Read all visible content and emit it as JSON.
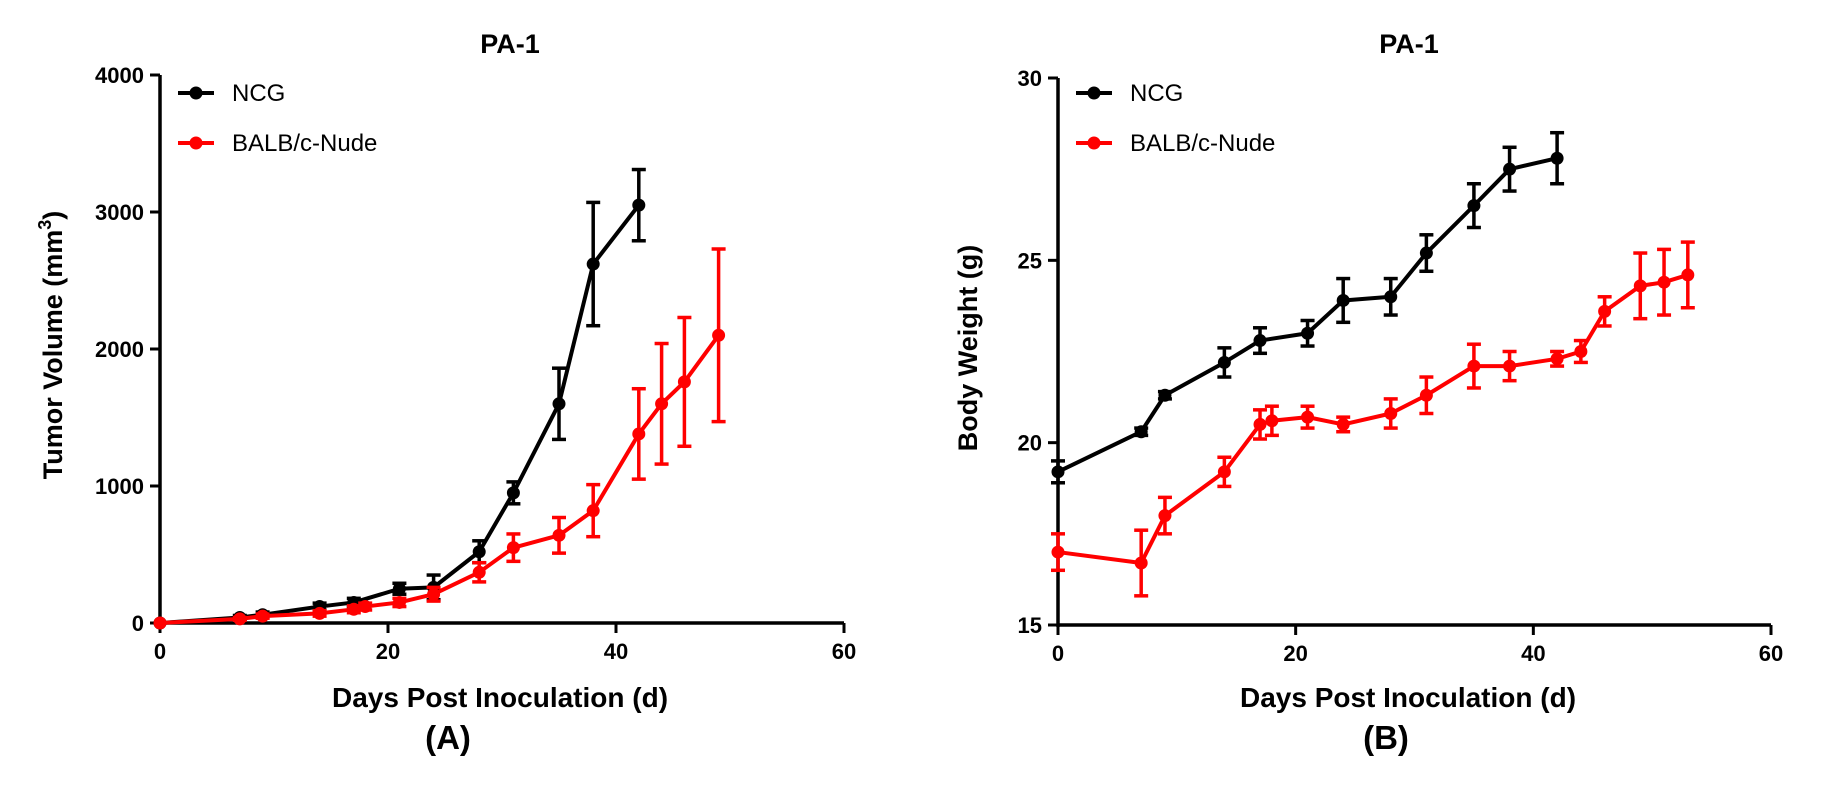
{
  "chart_data": [
    {
      "type": "line",
      "panel_label": "(A)",
      "title": "PA-1",
      "xlabel": "Days Post Inoculation (d)",
      "ylabel": "Tumor Volume (mm",
      "ylabel_sup": "3",
      "ylabel_close": ")",
      "xlim": [
        0,
        60
      ],
      "ylim": [
        0,
        4000
      ],
      "xticks": [
        0,
        20,
        40,
        60
      ],
      "yticks": [
        0,
        1000,
        2000,
        3000,
        4000
      ],
      "grid": false,
      "legend_position": "top-left",
      "series": [
        {
          "name": "NCG",
          "color": "#000000",
          "x": [
            0,
            7,
            9,
            14,
            17,
            21,
            24,
            28,
            31,
            35,
            38,
            42
          ],
          "y": [
            0,
            40,
            60,
            120,
            150,
            250,
            260,
            520,
            950,
            1600,
            2620,
            3050
          ],
          "err": [
            0,
            15,
            20,
            25,
            30,
            40,
            90,
            80,
            80,
            260,
            450,
            260
          ]
        },
        {
          "name": "BALB/c-Nude",
          "color": "#ff0000",
          "x": [
            0,
            7,
            9,
            14,
            17,
            18,
            21,
            24,
            28,
            31,
            35,
            38,
            42,
            44,
            46,
            49
          ],
          "y": [
            0,
            30,
            50,
            70,
            100,
            120,
            150,
            210,
            370,
            550,
            640,
            820,
            1380,
            1600,
            1760,
            2100
          ],
          "err": [
            0,
            10,
            15,
            20,
            25,
            25,
            30,
            50,
            70,
            100,
            130,
            190,
            330,
            440,
            470,
            630
          ]
        }
      ]
    },
    {
      "type": "line",
      "panel_label": "(B)",
      "title": "PA-1",
      "xlabel": "Days Post Inoculation (d)",
      "ylabel": "Body Weight (g)",
      "xlim": [
        0,
        60
      ],
      "ylim": [
        15,
        30
      ],
      "xticks": [
        0,
        20,
        40,
        60
      ],
      "yticks": [
        15,
        20,
        25,
        30
      ],
      "grid": false,
      "legend_position": "top-left",
      "series": [
        {
          "name": "NCG",
          "color": "#000000",
          "x": [
            0,
            7,
            9,
            14,
            17,
            21,
            24,
            28,
            31,
            35,
            38,
            42
          ],
          "y": [
            19.2,
            20.3,
            21.3,
            22.2,
            22.8,
            23.0,
            23.9,
            24.0,
            25.2,
            26.5,
            27.5,
            27.8
          ],
          "err": [
            0.3,
            0.1,
            0.1,
            0.4,
            0.35,
            0.35,
            0.6,
            0.5,
            0.5,
            0.6,
            0.6,
            0.7
          ]
        },
        {
          "name": "BALB/c-Nude",
          "color": "#ff0000",
          "x": [
            0,
            7,
            9,
            14,
            17,
            18,
            21,
            24,
            28,
            31,
            35,
            38,
            42,
            44,
            46,
            49,
            51,
            53
          ],
          "y": [
            17.0,
            16.7,
            18.0,
            19.2,
            20.5,
            20.6,
            20.7,
            20.5,
            20.8,
            21.3,
            22.1,
            22.1,
            22.3,
            22.5,
            23.6,
            24.3,
            24.4,
            24.6
          ],
          "err": [
            0.5,
            0.9,
            0.5,
            0.4,
            0.4,
            0.4,
            0.3,
            0.2,
            0.4,
            0.5,
            0.6,
            0.4,
            0.2,
            0.3,
            0.4,
            0.9,
            0.9,
            0.9
          ]
        }
      ]
    }
  ]
}
